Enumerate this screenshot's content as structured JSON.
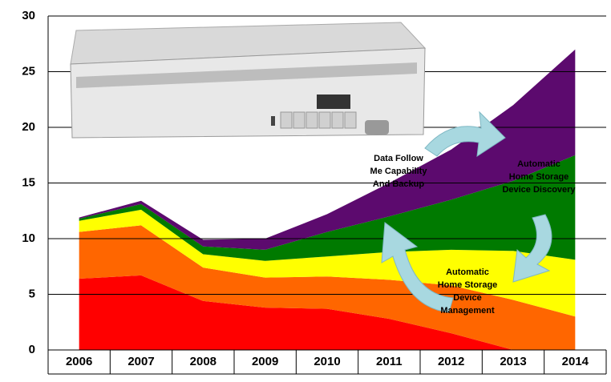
{
  "chart_data": {
    "type": "stacked-area",
    "categories": [
      "2006",
      "2007",
      "2008",
      "2009",
      "2010",
      "2011",
      "2012",
      "2013",
      "2014"
    ],
    "series": [
      {
        "color": "#ff0000",
        "values": [
          6.4,
          6.7,
          4.4,
          3.8,
          3.7,
          2.8,
          1.5,
          0,
          0
        ]
      },
      {
        "color": "#ff6600",
        "values": [
          4.2,
          4.5,
          3.0,
          2.7,
          2.9,
          3.5,
          4.3,
          4.5,
          3.0
        ]
      },
      {
        "color": "#ffff00",
        "values": [
          1.0,
          1.4,
          1.2,
          1.5,
          1.8,
          2.5,
          3.2,
          4.4,
          5.1
        ]
      },
      {
        "color": "#007a00",
        "values": [
          0.2,
          0.5,
          0.7,
          1.0,
          2.2,
          3.2,
          4.5,
          6.3,
          9.4
        ]
      },
      {
        "color": "#5c0a6e",
        "values": [
          0.1,
          0.3,
          0.6,
          1.0,
          1.6,
          3.0,
          4.5,
          6.8,
          9.5
        ]
      }
    ],
    "ylim": [
      0,
      30
    ],
    "yticks": [
      0,
      5,
      10,
      15,
      20,
      25,
      30
    ],
    "grid": true,
    "annotations": [
      {
        "lines": [
          "Data Follow",
          "Me Capability",
          "And Backup"
        ]
      },
      {
        "lines": [
          "Automatic",
          "Home Storage",
          "Device Discovery"
        ]
      },
      {
        "lines": [
          "Automatic",
          "Home Storage",
          "Device",
          "Management"
        ]
      }
    ]
  }
}
